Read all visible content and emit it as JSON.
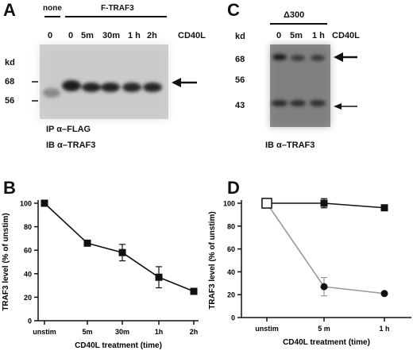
{
  "panels": {
    "A": {
      "letter": "A",
      "none_label": "none",
      "ftraf3_label": "F-TRAF3",
      "stim_label": "CD40L",
      "lanes": [
        "0",
        "0",
        "5m",
        "30m",
        "1 h",
        "2h"
      ],
      "kd_label": "kd",
      "markers": [
        "68",
        "56"
      ],
      "ip_label": "IP α–FLAG",
      "ib_label": "IB α–TRAF3"
    },
    "B": {
      "letter": "B",
      "chart_data": {
        "type": "line",
        "categories": [
          "unstim",
          "5m",
          "30m",
          "1h",
          "2h"
        ],
        "series": [
          {
            "values": [
              100,
              66,
              58,
              37,
              25
            ],
            "errors": [
              0,
              0,
              7,
              9,
              0
            ]
          }
        ],
        "xlabel": "CD40L treatment (time)",
        "ylabel": "TRAF3 level (% of unstim)",
        "ylim": [
          0,
          100
        ],
        "yticks": [
          "0",
          "20",
          "40",
          "60",
          "80",
          "100"
        ]
      }
    },
    "C": {
      "letter": "C",
      "construct_label": "Δ300",
      "stim_label": "CD40L",
      "lanes": [
        "0",
        "5m",
        "1 h"
      ],
      "kd_label": "kd",
      "markers": [
        "68",
        "56",
        "43"
      ],
      "ib_label": "IB α–TRAF3"
    },
    "D": {
      "letter": "D",
      "chart_data": {
        "type": "line",
        "categories": [
          "unstim",
          "5 m",
          "1 h"
        ],
        "series": [
          {
            "values": [
              100,
              100,
              96
            ],
            "errors": [
              0,
              4,
              0
            ],
            "marker": "square",
            "color": "#111111"
          },
          {
            "values": [
              100,
              27,
              21
            ],
            "errors": [
              0,
              8,
              0
            ],
            "marker": "circle",
            "color": "#9a9a9a"
          }
        ],
        "xlabel": "CD40L treatment (time)",
        "ylabel": "TRAF3 level (% of unstim)",
        "ylim": [
          0,
          100
        ],
        "yticks": [
          "0",
          "20",
          "40",
          "60",
          "80",
          "100"
        ]
      }
    }
  }
}
